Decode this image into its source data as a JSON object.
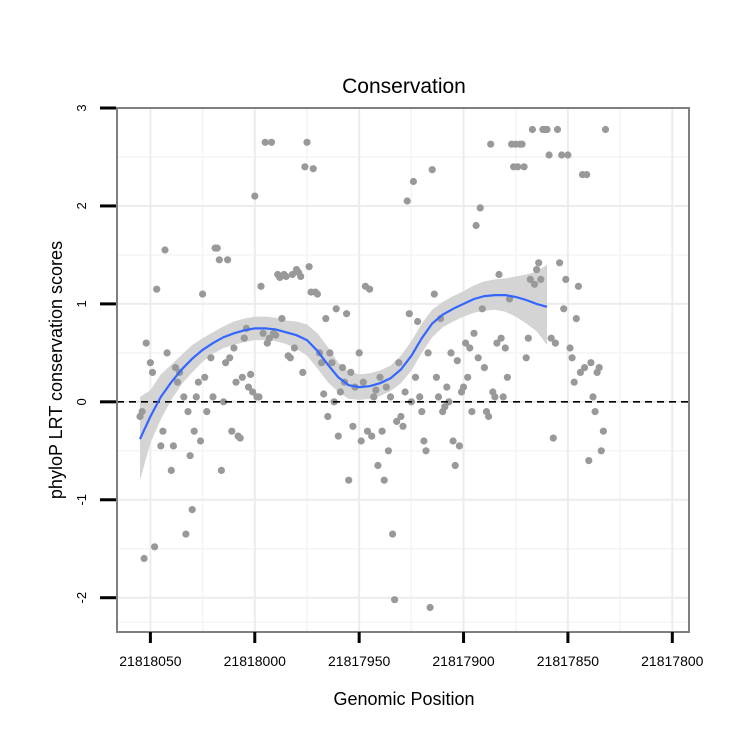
{
  "chart_data": {
    "type": "scatter",
    "title": "Conservation",
    "xlabel": "Genomic Position",
    "ylabel": "phyloP LRT conservation scores",
    "x_reversed": true,
    "xlim": [
      21818066,
      21817792
    ],
    "ylim": [
      -2.35,
      3
    ],
    "x_ticks": [
      21818050,
      21818000,
      21817950,
      21817900,
      21817850,
      21817800
    ],
    "x_tick_labels": [
      "21818050",
      "21818000",
      "21817950",
      "21817900",
      "21817850",
      "21817800"
    ],
    "y_ticks": [
      -2,
      -1,
      0,
      1,
      2,
      3
    ],
    "y_tick_labels": [
      "-2",
      "-1",
      "0",
      "1",
      "2",
      "3"
    ],
    "grid": true,
    "reference_line": {
      "y": 0,
      "style": "dashed"
    },
    "colors": {
      "points": "#999999",
      "smooth_line": "#3366ff",
      "band": "#d4d4d4",
      "grid": "#ececec",
      "frame": "#7f7f7f"
    },
    "points": [
      [
        21818055,
        -0.15
      ],
      [
        21818054,
        -0.1
      ],
      [
        21818053,
        -1.6
      ],
      [
        21818052,
        0.6
      ],
      [
        21818050,
        0.4
      ],
      [
        21818049,
        0.3
      ],
      [
        21818048,
        -1.48
      ],
      [
        21818047,
        1.15
      ],
      [
        21818045,
        -0.45
      ],
      [
        21818044,
        -0.3
      ],
      [
        21818043,
        1.55
      ],
      [
        21818042,
        0.5
      ],
      [
        21818040,
        -0.7
      ],
      [
        21818039,
        -0.45
      ],
      [
        21818038,
        0.35
      ],
      [
        21818037,
        0.2
      ],
      [
        21818036,
        0.3
      ],
      [
        21818034,
        0.05
      ],
      [
        21818033,
        -1.35
      ],
      [
        21818032,
        -0.1
      ],
      [
        21818031,
        -0.55
      ],
      [
        21818030,
        -1.1
      ],
      [
        21818029,
        -0.3
      ],
      [
        21818028,
        0.05
      ],
      [
        21818027,
        0.2
      ],
      [
        21818026,
        -0.4
      ],
      [
        21818025,
        1.1
      ],
      [
        21818024,
        0.25
      ],
      [
        21818023,
        -0.1
      ],
      [
        21818021,
        0.45
      ],
      [
        21818020,
        0.05
      ],
      [
        21818019,
        1.57
      ],
      [
        21818018,
        1.57
      ],
      [
        21818017,
        1.45
      ],
      [
        21818016,
        -0.7
      ],
      [
        21818015,
        0.0
      ],
      [
        21818014,
        0.4
      ],
      [
        21818013,
        1.45
      ],
      [
        21818012,
        0.45
      ],
      [
        21818011,
        -0.3
      ],
      [
        21818010,
        0.55
      ],
      [
        21818009,
        0.2
      ],
      [
        21818008,
        -0.35
      ],
      [
        21818007,
        -0.37
      ],
      [
        21818006,
        0.25
      ],
      [
        21818005,
        0.65
      ],
      [
        21818004,
        0.75
      ],
      [
        21818003,
        0.15
      ],
      [
        21818002,
        0.28
      ],
      [
        21818001,
        0.1
      ],
      [
        21818000,
        2.1
      ],
      [
        21817999,
        0.05
      ],
      [
        21817998,
        0.05
      ],
      [
        21817997,
        1.18
      ],
      [
        21817996,
        0.7
      ],
      [
        21817995,
        2.65
      ],
      [
        21817994,
        0.6
      ],
      [
        21817993,
        0.65
      ],
      [
        21817992,
        2.65
      ],
      [
        21817991,
        0.7
      ],
      [
        21817990,
        0.68
      ],
      [
        21817989,
        1.3
      ],
      [
        21817988,
        1.27
      ],
      [
        21817987,
        0.85
      ],
      [
        21817986,
        1.3
      ],
      [
        21817985,
        1.28
      ],
      [
        21817984,
        0.47
      ],
      [
        21817983,
        0.45
      ],
      [
        21817982,
        1.3
      ],
      [
        21817981,
        0.55
      ],
      [
        21817980,
        1.35
      ],
      [
        21817979,
        1.32
      ],
      [
        21817978,
        1.28
      ],
      [
        21817977,
        0.3
      ],
      [
        21817976,
        2.4
      ],
      [
        21817975,
        2.65
      ],
      [
        21817974,
        1.38
      ],
      [
        21817973,
        1.12
      ],
      [
        21817972,
        2.38
      ],
      [
        21817971,
        1.12
      ],
      [
        21817970,
        1.1
      ],
      [
        21817969,
        0.5
      ],
      [
        21817968,
        0.4
      ],
      [
        21817967,
        0.08
      ],
      [
        21817966,
        0.85
      ],
      [
        21817965,
        -0.15
      ],
      [
        21817964,
        0.5
      ],
      [
        21817963,
        0.4
      ],
      [
        21817962,
        0.0
      ],
      [
        21817961,
        0.95
      ],
      [
        21817960,
        -0.35
      ],
      [
        21817959,
        0.1
      ],
      [
        21817958,
        0.35
      ],
      [
        21817957,
        0.2
      ],
      [
        21817956,
        0.9
      ],
      [
        21817955,
        -0.8
      ],
      [
        21817954,
        0.3
      ],
      [
        21817953,
        -0.25
      ],
      [
        21817952,
        0.15
      ],
      [
        21817950,
        0.5
      ],
      [
        21817949,
        -0.4
      ],
      [
        21817948,
        0.2
      ],
      [
        21817947,
        1.18
      ],
      [
        21817946,
        -0.3
      ],
      [
        21817945,
        1.15
      ],
      [
        21817944,
        -0.35
      ],
      [
        21817943,
        0.05
      ],
      [
        21817942,
        0.12
      ],
      [
        21817941,
        -0.65
      ],
      [
        21817940,
        0.25
      ],
      [
        21817939,
        -0.3
      ],
      [
        21817938,
        -0.8
      ],
      [
        21817937,
        0.15
      ],
      [
        21817936,
        -0.5
      ],
      [
        21817935,
        0.05
      ],
      [
        21817934,
        -1.35
      ],
      [
        21817933,
        -2.02
      ],
      [
        21817932,
        -0.2
      ],
      [
        21817931,
        0.4
      ],
      [
        21817930,
        -0.15
      ],
      [
        21817929,
        -0.25
      ],
      [
        21817928,
        0.1
      ],
      [
        21817927,
        2.05
      ],
      [
        21817926,
        0.9
      ],
      [
        21817925,
        0.0
      ],
      [
        21817924,
        2.25
      ],
      [
        21817923,
        0.25
      ],
      [
        21817922,
        0.82
      ],
      [
        21817921,
        0.05
      ],
      [
        21817920,
        -0.1
      ],
      [
        21817919,
        -0.4
      ],
      [
        21817918,
        -0.5
      ],
      [
        21817917,
        0.5
      ],
      [
        21817916,
        -2.1
      ],
      [
        21817915,
        2.37
      ],
      [
        21817914,
        1.1
      ],
      [
        21817913,
        0.25
      ],
      [
        21817912,
        0.05
      ],
      [
        21817911,
        0.85
      ],
      [
        21817910,
        -0.1
      ],
      [
        21817909,
        -0.05
      ],
      [
        21817908,
        0.15
      ],
      [
        21817907,
        0.0
      ],
      [
        21817906,
        0.5
      ],
      [
        21817905,
        -0.4
      ],
      [
        21817904,
        -0.65
      ],
      [
        21817903,
        0.42
      ],
      [
        21817902,
        -0.45
      ],
      [
        21817901,
        0.1
      ],
      [
        21817900,
        0.15
      ],
      [
        21817899,
        0.6
      ],
      [
        21817898,
        0.25
      ],
      [
        21817897,
        0.55
      ],
      [
        21817896,
        -0.1
      ],
      [
        21817895,
        0.7
      ],
      [
        21817894,
        1.8
      ],
      [
        21817893,
        0.45
      ],
      [
        21817892,
        1.98
      ],
      [
        21817891,
        0.95
      ],
      [
        21817890,
        0.35
      ],
      [
        21817889,
        -0.1
      ],
      [
        21817888,
        -0.15
      ],
      [
        21817887,
        2.63
      ],
      [
        21817886,
        0.1
      ],
      [
        21817885,
        0.05
      ],
      [
        21817884,
        0.6
      ],
      [
        21817883,
        1.3
      ],
      [
        21817882,
        0.65
      ],
      [
        21817881,
        0.05
      ],
      [
        21817880,
        0.55
      ],
      [
        21817879,
        0.25
      ],
      [
        21817878,
        1.05
      ],
      [
        21817877,
        2.63
      ],
      [
        21817876,
        2.4
      ],
      [
        21817875,
        2.63
      ],
      [
        21817874,
        2.4
      ],
      [
        21817873,
        2.63
      ],
      [
        21817872,
        2.63
      ],
      [
        21817871,
        2.4
      ],
      [
        21817870,
        0.45
      ],
      [
        21817869,
        0.65
      ],
      [
        21817868,
        1.25
      ],
      [
        21817867,
        2.78
      ],
      [
        21817866,
        1.2
      ],
      [
        21817865,
        1.35
      ],
      [
        21817864,
        1.42
      ],
      [
        21817863,
        1.25
      ],
      [
        21817862,
        2.78
      ],
      [
        21817861,
        2.78
      ],
      [
        21817860,
        2.78
      ],
      [
        21817859,
        2.52
      ],
      [
        21817858,
        0.65
      ],
      [
        21817857,
        -0.37
      ],
      [
        21817856,
        0.6
      ],
      [
        21817855,
        2.78
      ],
      [
        21817854,
        1.42
      ],
      [
        21817853,
        2.52
      ],
      [
        21817852,
        0.95
      ],
      [
        21817851,
        1.25
      ],
      [
        21817850,
        2.52
      ],
      [
        21817849,
        0.55
      ],
      [
        21817848,
        0.45
      ],
      [
        21817847,
        0.2
      ],
      [
        21817846,
        0.85
      ],
      [
        21817845,
        1.18
      ],
      [
        21817844,
        0.3
      ],
      [
        21817843,
        2.32
      ],
      [
        21817842,
        0.35
      ],
      [
        21817841,
        2.32
      ],
      [
        21817840,
        -0.6
      ],
      [
        21817839,
        0.4
      ],
      [
        21817838,
        0.05
      ],
      [
        21817837,
        -0.1
      ],
      [
        21817836,
        0.3
      ],
      [
        21817835,
        0.35
      ],
      [
        21817834,
        -0.5
      ],
      [
        21817833,
        -0.3
      ],
      [
        21817832,
        2.78
      ]
    ],
    "smooth": [
      [
        21818055,
        -0.38
      ],
      [
        21818050,
        -0.15
      ],
      [
        21818045,
        0.05
      ],
      [
        21818040,
        0.2
      ],
      [
        21818035,
        0.33
      ],
      [
        21818030,
        0.44
      ],
      [
        21818025,
        0.53
      ],
      [
        21818020,
        0.6
      ],
      [
        21818015,
        0.66
      ],
      [
        21818010,
        0.7
      ],
      [
        21818005,
        0.73
      ],
      [
        21818000,
        0.75
      ],
      [
        21817995,
        0.75
      ],
      [
        21817990,
        0.74
      ],
      [
        21817985,
        0.71
      ],
      [
        21817980,
        0.68
      ],
      [
        21817975,
        0.63
      ],
      [
        21817970,
        0.52
      ],
      [
        21817965,
        0.38
      ],
      [
        21817960,
        0.25
      ],
      [
        21817955,
        0.17
      ],
      [
        21817950,
        0.15
      ],
      [
        21817945,
        0.16
      ],
      [
        21817940,
        0.19
      ],
      [
        21817935,
        0.24
      ],
      [
        21817930,
        0.33
      ],
      [
        21817925,
        0.47
      ],
      [
        21817920,
        0.65
      ],
      [
        21817915,
        0.8
      ],
      [
        21817910,
        0.89
      ],
      [
        21817905,
        0.95
      ],
      [
        21817900,
        1.0
      ],
      [
        21817895,
        1.05
      ],
      [
        21817890,
        1.08
      ],
      [
        21817885,
        1.09
      ],
      [
        21817880,
        1.09
      ],
      [
        21817875,
        1.07
      ],
      [
        21817870,
        1.04
      ],
      [
        21817865,
        1.0
      ],
      [
        21817860,
        0.97
      ]
    ],
    "band": [
      [
        21818055,
        -0.8,
        0.05
      ],
      [
        21818050,
        -0.42,
        0.12
      ],
      [
        21818045,
        -0.18,
        0.28
      ],
      [
        21818040,
        0.02,
        0.38
      ],
      [
        21818035,
        0.18,
        0.48
      ],
      [
        21818030,
        0.3,
        0.58
      ],
      [
        21818025,
        0.41,
        0.65
      ],
      [
        21818020,
        0.49,
        0.71
      ],
      [
        21818015,
        0.55,
        0.77
      ],
      [
        21818010,
        0.58,
        0.82
      ],
      [
        21818005,
        0.61,
        0.85
      ],
      [
        21818000,
        0.63,
        0.87
      ],
      [
        21817995,
        0.63,
        0.87
      ],
      [
        21817990,
        0.62,
        0.86
      ],
      [
        21817985,
        0.59,
        0.83
      ],
      [
        21817980,
        0.54,
        0.82
      ],
      [
        21817975,
        0.47,
        0.79
      ],
      [
        21817970,
        0.34,
        0.7
      ],
      [
        21817965,
        0.2,
        0.56
      ],
      [
        21817960,
        0.1,
        0.4
      ],
      [
        21817955,
        0.03,
        0.31
      ],
      [
        21817950,
        0.02,
        0.28
      ],
      [
        21817945,
        0.03,
        0.29
      ],
      [
        21817940,
        0.06,
        0.32
      ],
      [
        21817935,
        0.11,
        0.37
      ],
      [
        21817930,
        0.19,
        0.47
      ],
      [
        21817925,
        0.32,
        0.62
      ],
      [
        21817920,
        0.5,
        0.8
      ],
      [
        21817915,
        0.66,
        0.94
      ],
      [
        21817910,
        0.76,
        1.02
      ],
      [
        21817905,
        0.82,
        1.08
      ],
      [
        21817900,
        0.87,
        1.13
      ],
      [
        21817895,
        0.91,
        1.19
      ],
      [
        21817890,
        0.93,
        1.23
      ],
      [
        21817885,
        0.94,
        1.25
      ],
      [
        21817880,
        0.92,
        1.26
      ],
      [
        21817875,
        0.87,
        1.28
      ],
      [
        21817870,
        0.8,
        1.3
      ],
      [
        21817865,
        0.72,
        1.33
      ],
      [
        21817860,
        0.58,
        1.4
      ]
    ]
  }
}
